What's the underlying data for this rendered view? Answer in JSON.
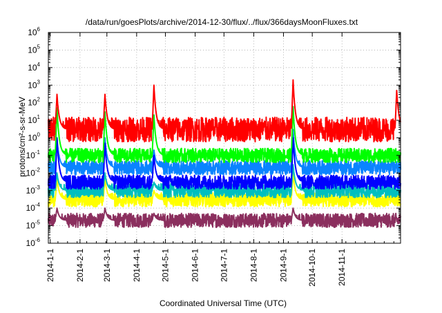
{
  "chart_data": {
    "type": "line",
    "title": "/data/run/goesPlots/archive/2014-12-30/flux/../flux/366daysMoonFluxes.txt",
    "xlabel": "Coordinated Universal Time (UTC)",
    "ylabel": "protons/cm²-s-sr-MeV",
    "y_scale": "log",
    "ylim": [
      1e-06,
      1000000.0
    ],
    "xlim": [
      "2013-12-30",
      "2015-01-01"
    ],
    "grid": true,
    "legend": "none",
    "x_ticks": [
      "2014-1-1",
      "2014-2-1",
      "2014-3-1",
      "2014-4-1",
      "2014-5-1",
      "2014-6-1",
      "2014-7-1",
      "2014-8-1",
      "2014-9-1",
      "2014-10-1",
      "2014-11-1"
    ],
    "y_ticks": [
      {
        "mantissa": "10",
        "exp": "-6",
        "value": 1e-06
      },
      {
        "mantissa": "10",
        "exp": "-5",
        "value": 1e-05
      },
      {
        "mantissa": "10",
        "exp": "-4",
        "value": 0.0001
      },
      {
        "mantissa": "10",
        "exp": "-3",
        "value": 0.001
      },
      {
        "mantissa": "10",
        "exp": "-2",
        "value": 0.01
      },
      {
        "mantissa": "10",
        "exp": "-1",
        "value": 0.1
      },
      {
        "mantissa": "10",
        "exp": "0",
        "value": 1
      },
      {
        "mantissa": "10",
        "exp": "1",
        "value": 10
      },
      {
        "mantissa": "10",
        "exp": "2",
        "value": 100
      },
      {
        "mantissa": "10",
        "exp": "3",
        "value": 1000
      },
      {
        "mantissa": "10",
        "exp": "4",
        "value": 10000
      },
      {
        "mantissa": "10",
        "exp": "5",
        "value": 100000
      },
      {
        "mantissa": "10",
        "exp": "6",
        "value": 1000000
      }
    ],
    "series": [
      {
        "color": "#8b2f5e",
        "baseline": 2e-05,
        "peaks": [
          {
            "date": "2014-01-08",
            "value": 0.0001
          },
          {
            "date": "2014-02-27",
            "value": 0.0001
          },
          {
            "date": "2014-04-19",
            "value": 5e-05
          },
          {
            "date": "2014-09-11",
            "value": 0.0001
          }
        ]
      },
      {
        "color": "#ffff00",
        "baseline": 0.0003,
        "peaks": [
          {
            "date": "2014-01-08",
            "value": 0.005
          },
          {
            "date": "2014-02-27",
            "value": 0.005
          },
          {
            "date": "2014-04-19",
            "value": 0.001
          },
          {
            "date": "2014-09-11",
            "value": 0.01
          }
        ]
      },
      {
        "color": "#00bfbf",
        "baseline": 0.001,
        "peaks": [
          {
            "date": "2014-01-08",
            "value": 0.01
          },
          {
            "date": "2014-02-27",
            "value": 0.01
          },
          {
            "date": "2014-04-19",
            "value": 0.003
          },
          {
            "date": "2014-09-11",
            "value": 0.03
          }
        ]
      },
      {
        "color": "#0a84ff",
        "baseline": 0.02,
        "peaks": [
          {
            "date": "2014-01-08",
            "value": 1
          },
          {
            "date": "2014-02-27",
            "value": 1
          },
          {
            "date": "2014-04-19",
            "value": 0.2
          },
          {
            "date": "2014-09-11",
            "value": 3
          }
        ]
      },
      {
        "color": "#0000ff",
        "baseline": 0.003,
        "peaks": [
          {
            "date": "2014-01-08",
            "value": 1
          },
          {
            "date": "2014-02-27",
            "value": 0.5
          },
          {
            "date": "2014-04-19",
            "value": 0.1
          },
          {
            "date": "2014-09-11",
            "value": 1
          }
        ]
      },
      {
        "color": "#00ff00",
        "baseline": 0.1,
        "peaks": [
          {
            "date": "2014-01-08",
            "value": 50
          },
          {
            "date": "2014-02-27",
            "value": 30
          },
          {
            "date": "2014-04-19",
            "value": 20
          },
          {
            "date": "2014-09-11",
            "value": 60
          }
        ]
      },
      {
        "color": "#ff0000",
        "baseline": 3,
        "peaks": [
          {
            "date": "2014-01-08",
            "value": 300
          },
          {
            "date": "2014-02-27",
            "value": 300
          },
          {
            "date": "2014-04-19",
            "value": 1000
          },
          {
            "date": "2014-09-11",
            "value": 2000
          },
          {
            "date": "2014-12-28",
            "value": 500
          }
        ]
      }
    ]
  }
}
